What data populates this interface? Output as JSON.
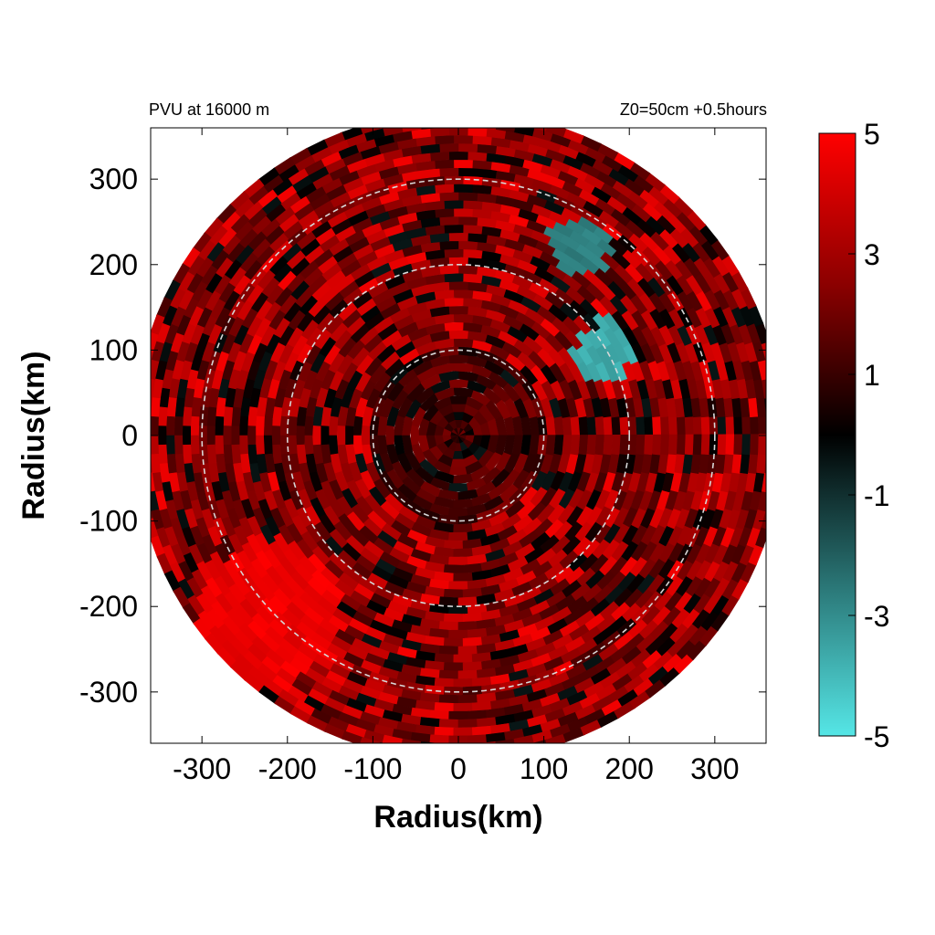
{
  "titles": {
    "left": "PVU at 16000 m",
    "right": "Z0=50cm  +0.5hours"
  },
  "chart_data": {
    "type": "heatmap",
    "title": "PVU at 16000 m",
    "subtitle": "Z0=50cm  +0.5hours",
    "xlabel": "Radius(km)",
    "ylabel": "Radius(km)",
    "xlim": [
      -360,
      360
    ],
    "ylim": [
      -360,
      360
    ],
    "x_ticks": [
      -300,
      -200,
      -100,
      0,
      100,
      200,
      300
    ],
    "x_tick_labels": [
      "-300",
      "-200",
      "-100",
      "0",
      "100",
      "200",
      "300"
    ],
    "y_ticks": [
      300,
      200,
      100,
      0,
      -100,
      -200,
      -300
    ],
    "y_tick_labels": [
      "300",
      "200",
      "100",
      "0",
      "-100",
      "-200",
      "-300"
    ],
    "domain_radius_km": 380,
    "range_rings_km": [
      100,
      200,
      300
    ],
    "colorbar": {
      "min": -5,
      "max": 5,
      "ticks": [
        5,
        3,
        1,
        -1,
        -3,
        -5
      ],
      "tick_labels": [
        "5",
        "3",
        "1",
        "-1",
        "-3",
        "-5"
      ],
      "colors": {
        "high": "#ff0000",
        "mid": "#000000",
        "low": "#55e6e6"
      }
    },
    "features": [
      {
        "description": "large saturated positive region",
        "center_km": [
          -220,
          -210
        ],
        "value": 5
      },
      {
        "description": "negative cyan band",
        "center_km": [
          170,
          100
        ],
        "value": -4
      },
      {
        "description": "negative cyan patch",
        "center_km": [
          140,
          220
        ],
        "value": -3
      }
    ]
  }
}
